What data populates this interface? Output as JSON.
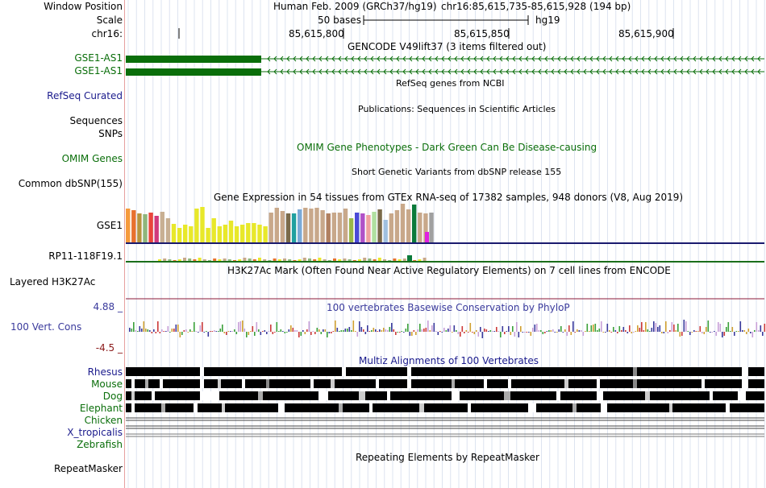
{
  "header": {
    "window_position_label": "Window Position",
    "scale_label": "Scale",
    "chrom_label": "chr16:",
    "assembly_text": "Human Feb. 2009 (GRCh37/hg19)",
    "position_text": "chr16:85,615,735-85,615,928 (194 bp)",
    "scale_text": "50 bases",
    "db_text": "hg19",
    "ruler_ticks": [
      "85,615,800",
      "85,615,850",
      "85,615,900"
    ]
  },
  "tracks": {
    "gencode_title": "GENCODE V49lift37 (3 items filtered out)",
    "gencode_items": [
      "GSE1-AS1",
      "GSE1-AS1"
    ],
    "refseq_title": "RefSeq genes from NCBI",
    "refseq_label": "RefSeq Curated",
    "publications_title": "Publications: Sequences in Scientific Articles",
    "sequences_label": "Sequences",
    "snps_label": "SNPs",
    "omim_title": "OMIM Gene Phenotypes - Dark Green Can Be Disease-causing",
    "omim_label": "OMIM Genes",
    "dbsnp_title": "Short Genetic Variants from dbSNP release 155",
    "dbsnp_label": "Common dbSNP(155)",
    "gtex_title": "Gene Expression in 54 tissues from GTEx RNA-seq of 17382 samples, 948 donors (V8, Aug 2019)",
    "gtex_gene1": "GSE1",
    "gtex_gene2": "RP11-118F19.1",
    "h3k27ac_title": "H3K27Ac Mark (Often Found Near Active Regulatory Elements) on 7 cell lines from ENCODE",
    "h3k27ac_label": "Layered H3K27Ac",
    "cons_title": "100 vertebrates Basewise Conservation by PhyloP",
    "cons_label": "100 Vert. Cons",
    "cons_max": "4.88 _",
    "cons_min": "-4.5 _",
    "multiz_title": "Multiz Alignments of 100 Vertebrates",
    "species": [
      "Rhesus",
      "Mouse",
      "Dog",
      "Elephant",
      "Chicken",
      "X_tropicalis",
      "Zebrafish"
    ],
    "repeat_title": "Repeating Elements by RepeatMasker",
    "repeat_label": "RepeatMasker"
  },
  "colors": {
    "gene_green": "#0a6e0a",
    "track_navy": "#1a1a8c",
    "conservation_blue": "#3a3a9c",
    "conservation_min": "#8b1a1a",
    "label_divider": "#e6a0a0"
  }
}
